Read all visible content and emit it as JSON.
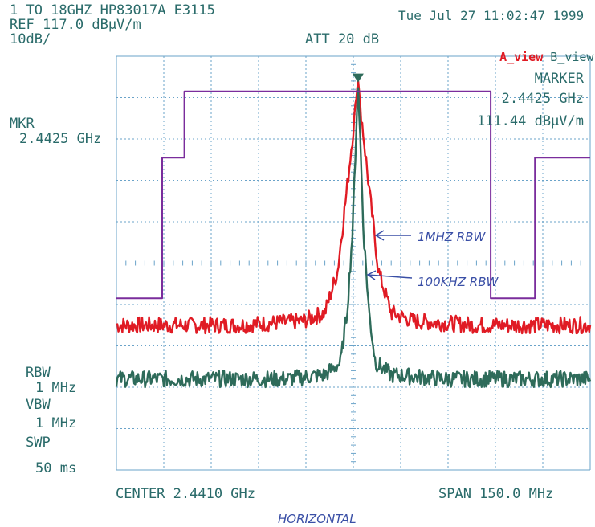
{
  "header": {
    "range_label": "1 TO 18GHZ HP83017A E3115",
    "ref_label": "REF 117.0 dBµV/m",
    "scale_label": "10dB/",
    "att_label": "ATT 20 dB",
    "datetime": "Tue Jul 27 11:02:47 1999",
    "view_a": "A_view",
    "view_b": "B_view"
  },
  "marker": {
    "title": "MARKER",
    "freq": "2.4425 GHz",
    "level": "111.44 dBµV/m",
    "mkr_title": "MKR",
    "mkr_freq": "2.4425 GHz"
  },
  "settings": {
    "rbw_title": "RBW",
    "rbw_value": "1 MHz",
    "vbw_title": "VBW",
    "vbw_value": "1 MHz",
    "swp_title": "SWP",
    "swp_value": "50 ms"
  },
  "footer": {
    "center_label": "CENTER 2.4410 GHz",
    "span_label": "SPAN 150.0 MHz",
    "handwritten_note": "HORIZONTAL"
  },
  "annotations": {
    "rbw_1mhz": "1MHZ RBW",
    "rbw_100khz": "100KHZ RBW"
  },
  "colors": {
    "grid": "#6aa3c9",
    "text": "#2a6b6a",
    "red_trace": "#e01b24",
    "green_trace": "#2e6b5a",
    "limit_line": "#7a2d9c",
    "handwriting": "#3a4fa6"
  },
  "chart_data": {
    "type": "line",
    "x_unit": "GHz",
    "y_unit": "dBµV/m",
    "xlim": [
      2.366,
      2.516
    ],
    "ylim": [
      17.0,
      117.0
    ],
    "x_divisions": 10,
    "y_divisions": 10,
    "grid": true,
    "series": [
      {
        "color": "#e01b24",
        "x": [
          2.366,
          2.405,
          2.425,
          2.432,
          2.436,
          2.439,
          2.4415,
          2.4425,
          2.4435,
          2.446,
          2.449,
          2.453,
          2.46,
          2.48,
          2.516
        ],
        "values": [
          52,
          52,
          53,
          55,
          65,
          85,
          103,
          111.44,
          103,
          85,
          65,
          55,
          53,
          52,
          52
        ],
        "noise": 2.0
      },
      {
        "color": "#2e6b5a",
        "x": [
          2.366,
          2.42,
          2.432,
          2.437,
          2.439,
          2.4408,
          2.4418,
          2.4425,
          2.4432,
          2.4442,
          2.446,
          2.448,
          2.453,
          2.47,
          2.516
        ],
        "values": [
          39,
          39,
          40,
          43,
          55,
          75,
          97,
          110.5,
          97,
          75,
          55,
          43,
          40,
          39,
          39
        ],
        "noise": 2.0
      },
      {
        "color": "#7a2d9c",
        "x": [
          2.366,
          2.3805,
          2.3805,
          2.3875,
          2.3875,
          2.4305,
          2.4305,
          2.4478,
          2.4478,
          2.4845,
          2.4845,
          2.4985,
          2.4985,
          2.516
        ],
        "values": [
          58.5,
          58.5,
          92.5,
          92.5,
          108.5,
          108.5,
          108.5,
          108.5,
          108.5,
          108.5,
          58.5,
          58.5,
          92.5,
          92.5
        ]
      }
    ],
    "marker_x": 2.4425,
    "marker_y": 111.44
  }
}
